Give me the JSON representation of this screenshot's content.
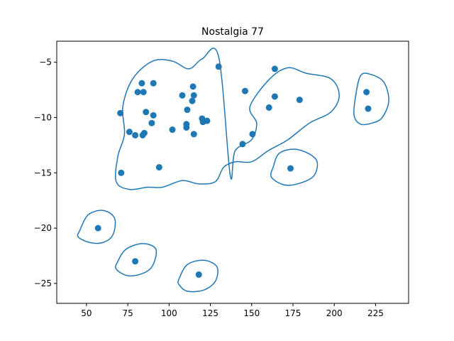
{
  "chart_data": {
    "type": "scatter",
    "title": "Nostalgia 77",
    "xlabel": "",
    "ylabel": "",
    "xlim": [
      32,
      245
    ],
    "ylim": [
      -26.8,
      -3.1
    ],
    "xticks": [
      50,
      75,
      100,
      125,
      150,
      175,
      200,
      225
    ],
    "yticks": [
      -5,
      -10,
      -15,
      -20,
      -25
    ],
    "xtick_labels": [
      "50",
      "75",
      "100",
      "125",
      "150",
      "175",
      "200",
      "225"
    ],
    "ytick_labels": [
      "−5",
      "−10",
      "−15",
      "−20",
      "−25"
    ],
    "grid": false,
    "legend": "none",
    "point_color": "#1f77b4",
    "contour_color": "#1f77b4",
    "points": [
      [
        57,
        -20.0
      ],
      [
        79.5,
        -23.0
      ],
      [
        118,
        -24.2
      ],
      [
        70.5,
        -9.6
      ],
      [
        71,
        -15.0
      ],
      [
        76,
        -11.3
      ],
      [
        79.5,
        -11.6
      ],
      [
        81,
        -7.7
      ],
      [
        83.5,
        -6.9
      ],
      [
        84,
        -11.6
      ],
      [
        84.5,
        -7.7
      ],
      [
        85,
        -11.4
      ],
      [
        86,
        -9.5
      ],
      [
        89.5,
        -10.5
      ],
      [
        90.5,
        -9.8
      ],
      [
        90.5,
        -6.9
      ],
      [
        94,
        -14.5
      ],
      [
        102,
        -11.1
      ],
      [
        108,
        -8.0
      ],
      [
        110.5,
        -10.6
      ],
      [
        110.5,
        -10.9
      ],
      [
        111,
        -9.3
      ],
      [
        114,
        -8.5
      ],
      [
        114.5,
        -7.2
      ],
      [
        115,
        -8.0
      ],
      [
        115,
        -11.5
      ],
      [
        120,
        -10.1
      ],
      [
        120.5,
        -10.4
      ],
      [
        123,
        -10.3
      ],
      [
        130,
        -5.4
      ],
      [
        144.5,
        -12.4
      ],
      [
        146,
        -7.6
      ],
      [
        150.5,
        -11.5
      ],
      [
        160.5,
        -9.1
      ],
      [
        164,
        -5.6
      ],
      [
        164,
        -8.1
      ],
      [
        173.5,
        -14.6
      ],
      [
        179,
        -8.4
      ],
      [
        219.5,
        -7.7
      ],
      [
        220.5,
        -9.2
      ]
    ],
    "contours": [
      [
        [
          137,
          -15.2
        ],
        [
          140,
          -13.0
        ],
        [
          150,
          -12.0
        ],
        [
          153,
          -10.5
        ],
        [
          149,
          -9.0
        ],
        [
          161,
          -6.5
        ],
        [
          172,
          -5.5
        ],
        [
          183,
          -6.0
        ],
        [
          198,
          -6.5
        ],
        [
          203,
          -8.0
        ],
        [
          198,
          -9.5
        ],
        [
          185,
          -10.5
        ],
        [
          172,
          -12.0
        ],
        [
          160,
          -13.0
        ],
        [
          150,
          -14.0
        ],
        [
          140,
          -14.0
        ],
        [
          133,
          -14.5
        ],
        [
          128,
          -15.8
        ],
        [
          118,
          -16.0
        ],
        [
          108,
          -15.7
        ],
        [
          96,
          -16.3
        ],
        [
          87,
          -16.3
        ],
        [
          76,
          -16.5
        ],
        [
          68,
          -15.8
        ],
        [
          69,
          -13.5
        ],
        [
          73,
          -11.5
        ],
        [
          72,
          -9.0
        ],
        [
          78,
          -6.5
        ],
        [
          90,
          -4.9
        ],
        [
          102,
          -4.9
        ],
        [
          112,
          -5.6
        ],
        [
          120,
          -4.7
        ],
        [
          130,
          -4.5
        ]
      ],
      [
        [
          213,
          -8.0
        ],
        [
          216,
          -6.2
        ],
        [
          222,
          -6.1
        ],
        [
          230,
          -6.8
        ],
        [
          233,
          -8.5
        ],
        [
          229,
          -10.0
        ],
        [
          223,
          -10.5
        ],
        [
          216,
          -10.6
        ],
        [
          212,
          -9.8
        ]
      ],
      [
        [
          163,
          -14.5
        ],
        [
          167,
          -13.2
        ],
        [
          178,
          -12.9
        ],
        [
          189,
          -13.8
        ],
        [
          188,
          -15.2
        ],
        [
          180,
          -15.9
        ],
        [
          170,
          -16.1
        ],
        [
          162,
          -15.4
        ]
      ],
      [
        [
          46,
          -20.2
        ],
        [
          51,
          -18.8
        ],
        [
          60,
          -18.4
        ],
        [
          67,
          -19.1
        ],
        [
          66,
          -20.6
        ],
        [
          60,
          -21.3
        ],
        [
          52,
          -21.3
        ],
        [
          45,
          -20.8
        ]
      ],
      [
        [
          69,
          -23.0
        ],
        [
          74,
          -21.9
        ],
        [
          84,
          -21.4
        ],
        [
          92,
          -21.9
        ],
        [
          90,
          -23.4
        ],
        [
          84,
          -24.1
        ],
        [
          75,
          -24.3
        ],
        [
          68,
          -23.7
        ]
      ],
      [
        [
          106,
          -24.6
        ],
        [
          111,
          -23.3
        ],
        [
          121,
          -22.9
        ],
        [
          129,
          -23.5
        ],
        [
          128,
          -24.8
        ],
        [
          121,
          -25.6
        ],
        [
          111,
          -25.7
        ],
        [
          106,
          -25.1
        ]
      ]
    ]
  }
}
